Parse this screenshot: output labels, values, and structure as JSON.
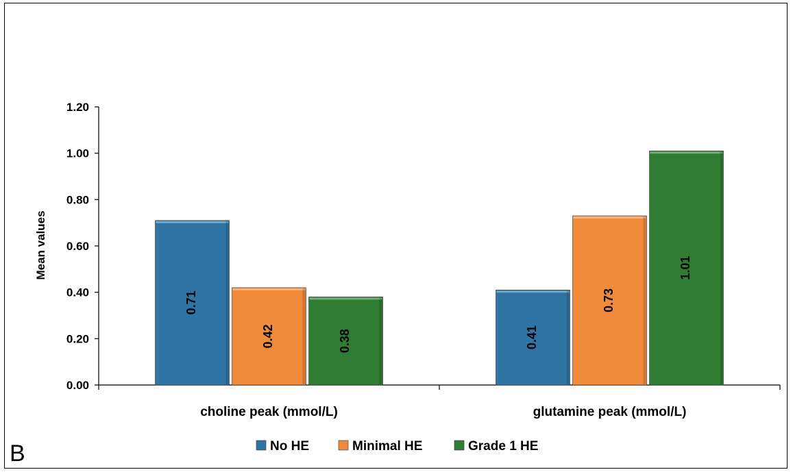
{
  "panel_letter": "B",
  "chart_data": {
    "type": "bar",
    "categories": [
      "choline peak (mmol/L)",
      "glutamine peak (mmol/L)"
    ],
    "series": [
      {
        "name": "No HE",
        "values": [
          0.71,
          0.41
        ],
        "color": "#2E75A6"
      },
      {
        "name": "Minimal HE",
        "values": [
          0.42,
          0.73
        ],
        "color": "#F08B3C"
      },
      {
        "name": "Grade 1 HE",
        "values": [
          0.38,
          1.01
        ],
        "color": "#2F7D32"
      }
    ],
    "data_labels": [
      [
        "0.71",
        "0.41"
      ],
      [
        "0.42",
        "0.73"
      ],
      [
        "0.38",
        "1.01"
      ]
    ],
    "ylabel": "Mean values",
    "xlabel": "",
    "ylim": [
      0,
      1.2
    ],
    "yticks": [
      "0.00",
      "0.20",
      "0.40",
      "0.60",
      "0.80",
      "1.00",
      "1.20"
    ],
    "grid": false,
    "legend_position": "bottom"
  }
}
